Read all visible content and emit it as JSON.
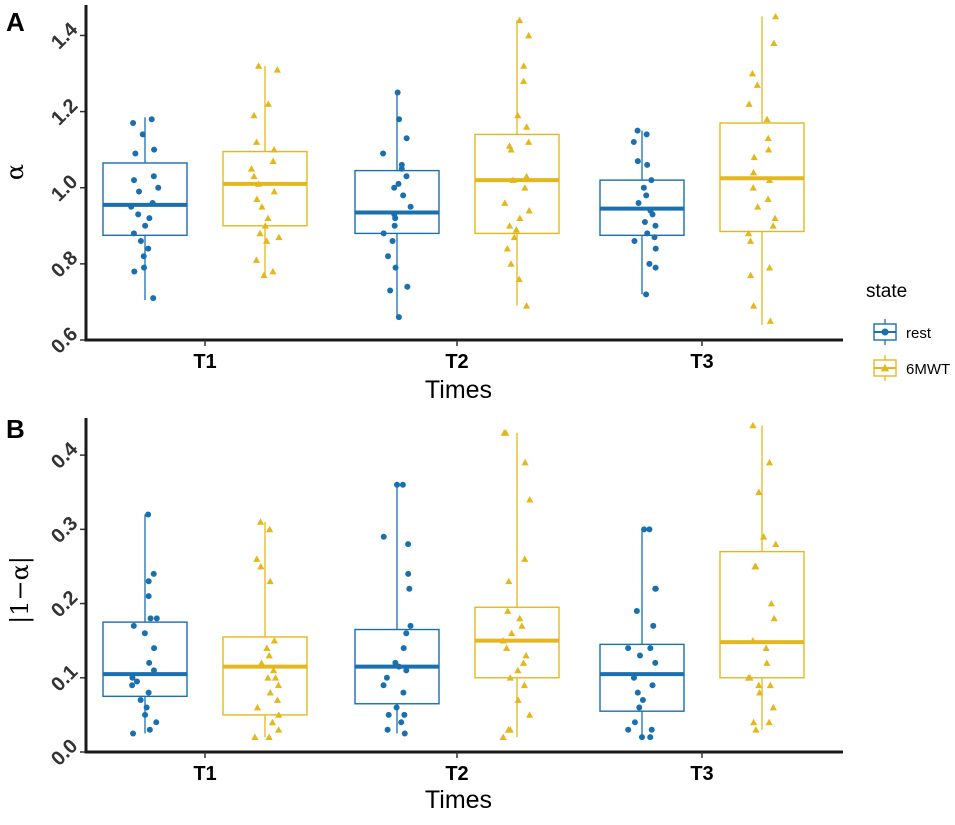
{
  "colors": {
    "rest": "#1a6faf",
    "6MWT": "#e3b81f"
  },
  "legend": {
    "title": "state",
    "items": [
      {
        "key": "rest",
        "label": "rest",
        "shape": "circle"
      },
      {
        "key": "6MWT",
        "label": "6MWT",
        "shape": "triangle"
      }
    ],
    "position": "right"
  },
  "chart_data": [
    {
      "panel": "A",
      "type": "boxplot",
      "xlabel": "Times",
      "ylabel": "α",
      "ylim": [
        0.6,
        1.48
      ],
      "yticks": [
        "0.6",
        "0.8",
        "1.0",
        "1.2",
        "1.4"
      ],
      "categories": [
        "T1",
        "T2",
        "T3"
      ],
      "series": [
        {
          "name": "rest",
          "boxes": [
            {
              "q1": 0.875,
              "median": 0.955,
              "q3": 1.065,
              "min": 0.705,
              "max": 1.185
            },
            {
              "q1": 0.88,
              "median": 0.935,
              "q3": 1.045,
              "min": 0.66,
              "max": 1.25
            },
            {
              "q1": 0.875,
              "median": 0.945,
              "q3": 1.02,
              "min": 0.72,
              "max": 1.15
            }
          ],
          "points": [
            [
              1.18,
              1.17,
              1.14,
              1.1,
              1.09,
              1.03,
              1.02,
              1.0,
              0.99,
              0.96,
              0.95,
              0.93,
              0.92,
              0.9,
              0.88,
              0.86,
              0.84,
              0.82,
              0.79,
              0.78,
              0.71
            ],
            [
              1.25,
              1.18,
              1.13,
              1.09,
              1.06,
              1.05,
              1.03,
              1.01,
              1.0,
              0.98,
              0.95,
              0.93,
              0.92,
              0.9,
              0.88,
              0.86,
              0.82,
              0.79,
              0.74,
              0.73,
              0.66
            ],
            [
              1.15,
              1.14,
              1.12,
              1.07,
              1.06,
              1.02,
              1.0,
              0.98,
              0.96,
              0.94,
              0.93,
              0.91,
              0.9,
              0.88,
              0.87,
              0.86,
              0.84,
              0.8,
              0.79,
              0.72
            ]
          ]
        },
        {
          "name": "6MWT",
          "boxes": [
            {
              "q1": 0.9,
              "median": 1.01,
              "q3": 1.095,
              "min": 0.77,
              "max": 1.32
            },
            {
              "q1": 0.88,
              "median": 1.02,
              "q3": 1.14,
              "min": 0.69,
              "max": 1.44
            },
            {
              "q1": 0.885,
              "median": 1.025,
              "q3": 1.17,
              "min": 0.64,
              "max": 1.45
            }
          ],
          "points": [
            [
              1.32,
              1.31,
              1.22,
              1.19,
              1.12,
              1.1,
              1.07,
              1.05,
              1.03,
              1.01,
              0.99,
              0.97,
              0.95,
              0.92,
              0.9,
              0.88,
              0.87,
              0.86,
              0.81,
              0.78,
              0.77
            ],
            [
              1.44,
              1.4,
              1.32,
              1.28,
              1.19,
              1.16,
              1.12,
              1.11,
              1.1,
              1.03,
              1.02,
              1.0,
              0.96,
              0.94,
              0.92,
              0.9,
              0.89,
              0.87,
              0.84,
              0.8,
              0.76,
              0.69
            ],
            [
              1.45,
              1.38,
              1.3,
              1.27,
              1.22,
              1.18,
              1.13,
              1.1,
              1.08,
              1.04,
              1.02,
              1.0,
              0.97,
              0.95,
              0.92,
              0.9,
              0.88,
              0.86,
              0.79,
              0.77,
              0.69,
              0.65
            ]
          ]
        }
      ]
    },
    {
      "panel": "B",
      "type": "boxplot",
      "xlabel": "Times",
      "ylabel": "|1−α|",
      "ylim": [
        0.0,
        0.45
      ],
      "yticks": [
        "0.0",
        "0.1",
        "0.2",
        "0.3",
        "0.4"
      ],
      "categories": [
        "T1",
        "T2",
        "T3"
      ],
      "series": [
        {
          "name": "rest",
          "boxes": [
            {
              "q1": 0.075,
              "median": 0.105,
              "q3": 0.175,
              "min": 0.025,
              "max": 0.32
            },
            {
              "q1": 0.065,
              "median": 0.115,
              "q3": 0.165,
              "min": 0.025,
              "max": 0.36
            },
            {
              "q1": 0.055,
              "median": 0.105,
              "q3": 0.145,
              "min": 0.02,
              "max": 0.3
            }
          ],
          "points": [
            [
              0.32,
              0.24,
              0.23,
              0.21,
              0.18,
              0.18,
              0.17,
              0.16,
              0.14,
              0.12,
              0.11,
              0.1,
              0.095,
              0.09,
              0.08,
              0.07,
              0.06,
              0.05,
              0.04,
              0.03,
              0.025
            ],
            [
              0.36,
              0.36,
              0.29,
              0.28,
              0.24,
              0.22,
              0.17,
              0.16,
              0.14,
              0.12,
              0.115,
              0.11,
              0.1,
              0.09,
              0.08,
              0.06,
              0.05,
              0.05,
              0.04,
              0.03,
              0.025
            ],
            [
              0.3,
              0.3,
              0.22,
              0.22,
              0.19,
              0.17,
              0.14,
              0.14,
              0.13,
              0.12,
              0.1,
              0.09,
              0.08,
              0.07,
              0.06,
              0.04,
              0.03,
              0.03,
              0.02,
              0.02
            ]
          ]
        },
        {
          "name": "6MWT",
          "boxes": [
            {
              "q1": 0.05,
              "median": 0.115,
              "q3": 0.155,
              "min": 0.02,
              "max": 0.31
            },
            {
              "q1": 0.1,
              "median": 0.15,
              "q3": 0.195,
              "min": 0.02,
              "max": 0.43
            },
            {
              "q1": 0.1,
              "median": 0.148,
              "q3": 0.27,
              "min": 0.03,
              "max": 0.44
            }
          ],
          "points": [
            [
              0.31,
              0.3,
              0.26,
              0.25,
              0.23,
              0.15,
              0.14,
              0.13,
              0.12,
              0.11,
              0.1,
              0.1,
              0.09,
              0.08,
              0.07,
              0.06,
              0.05,
              0.04,
              0.03,
              0.02,
              0.02
            ],
            [
              0.43,
              0.43,
              0.39,
              0.34,
              0.26,
              0.23,
              0.19,
              0.18,
              0.17,
              0.16,
              0.15,
              0.14,
              0.13,
              0.12,
              0.11,
              0.1,
              0.09,
              0.07,
              0.05,
              0.03,
              0.03,
              0.02
            ],
            [
              0.44,
              0.39,
              0.35,
              0.29,
              0.28,
              0.25,
              0.25,
              0.2,
              0.18,
              0.15,
              0.14,
              0.12,
              0.1,
              0.1,
              0.09,
              0.09,
              0.08,
              0.06,
              0.04,
              0.04,
              0.03
            ]
          ]
        }
      ]
    }
  ]
}
